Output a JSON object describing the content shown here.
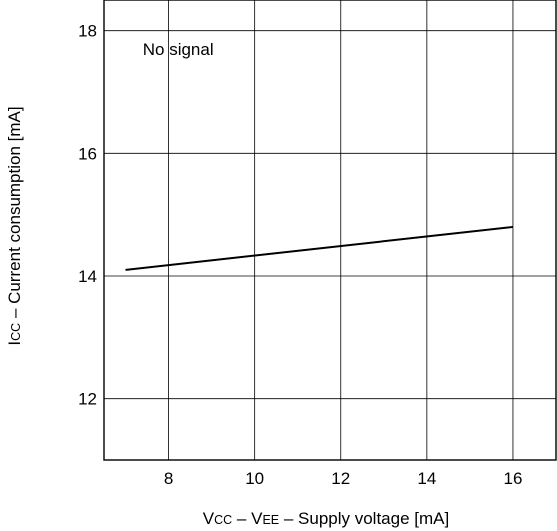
{
  "chart_data": {
    "type": "line",
    "title": "",
    "xlabel": {
      "parts": [
        {
          "text": "V",
          "sub": false
        },
        {
          "text": "CC",
          "sub": true
        },
        {
          "text": " – V",
          "sub": false
        },
        {
          "text": "EE",
          "sub": true
        },
        {
          "text": " – Supply voltage [mA]",
          "sub": false
        }
      ]
    },
    "ylabel": {
      "parts": [
        {
          "text": "I",
          "sub": false
        },
        {
          "text": "CC",
          "sub": true
        },
        {
          "text": " – Current consumption [mA]",
          "sub": false
        }
      ]
    },
    "xlim": [
      6.5,
      17
    ],
    "ylim": [
      11,
      18.5
    ],
    "xticks": [
      8,
      10,
      12,
      14,
      16
    ],
    "yticks": [
      12,
      14,
      16,
      18
    ],
    "xtick_labels": [
      "8",
      "10",
      "12",
      "14",
      "16"
    ],
    "ytick_labels": [
      "12",
      "14",
      "16",
      "18"
    ],
    "grid": true,
    "annotations": [
      {
        "text": "No signal",
        "x": 7.4,
        "y": 17.6
      }
    ],
    "series": [
      {
        "x": [
          7,
          16
        ],
        "y": [
          14.1,
          14.8
        ]
      }
    ]
  }
}
